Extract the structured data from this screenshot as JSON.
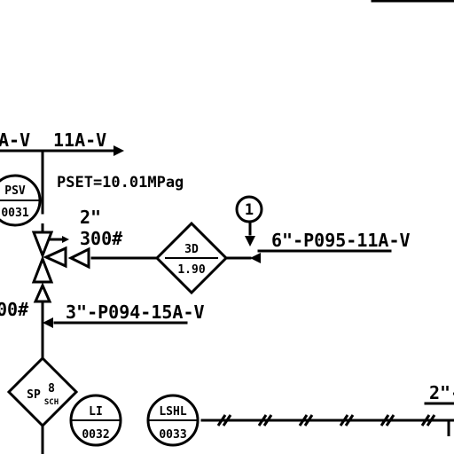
{
  "line_labels": {
    "top_left_spec": "A-V",
    "top_spec": "11A-V",
    "outlet_line": "6\"-P095-11A-V",
    "inlet_line": "3\"-P094-15A-V",
    "bottom_right_size": "2\"-",
    "left_rating": "00#"
  },
  "valve_note": {
    "size": "2\"",
    "rating": "300#"
  },
  "pset_note": "PSET=10.01MPag",
  "instruments": {
    "psv": {
      "tag": "PSV",
      "number": "0031"
    },
    "li": {
      "tag": "LI",
      "number": "0032"
    },
    "lshl": {
      "tag": "LSHL",
      "number": "0033"
    },
    "callout": "1"
  },
  "diamonds": {
    "right": {
      "top": "3D",
      "bottom": "1.90"
    },
    "bottom_left": {
      "top": "SP",
      "mid": "8",
      "bottom": "SCH"
    }
  },
  "colors": {
    "ink": "#000000",
    "paper": "#ffffff"
  }
}
